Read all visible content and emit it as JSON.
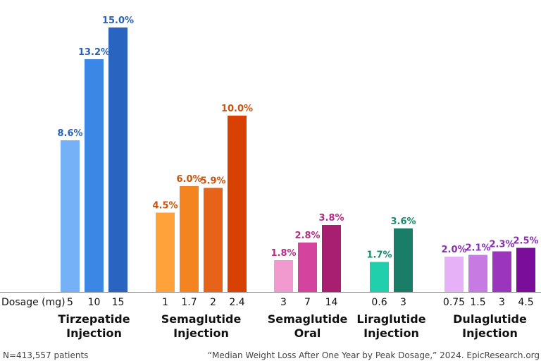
{
  "chart_data": {
    "type": "bar",
    "dosage_label": "Dosage (mg)",
    "ylim": [
      0,
      15
    ],
    "groups": [
      {
        "name_lines": [
          "Tirzepatide",
          "Injection"
        ],
        "label_color": "#2a62b8",
        "bars": [
          {
            "dose": "5",
            "value": 8.6,
            "label": "8.6%",
            "color": "#75b1f6"
          },
          {
            "dose": "10",
            "value": 13.2,
            "label": "13.2%",
            "color": "#3a87e6"
          },
          {
            "dose": "15",
            "value": 15.0,
            "label": "15.0%",
            "color": "#2864c0"
          }
        ]
      },
      {
        "name_lines": [
          "Semaglutide",
          "Injection"
        ],
        "label_color": "#c9530a",
        "bars": [
          {
            "dose": "1",
            "value": 4.5,
            "label": "4.5%",
            "color": "#ffa23a"
          },
          {
            "dose": "1.7",
            "value": 6.0,
            "label": "6.0%",
            "color": "#f4841f"
          },
          {
            "dose": "2",
            "value": 5.9,
            "label": "5.9%",
            "color": "#e8631a"
          },
          {
            "dose": "2.4",
            "value": 10.0,
            "label": "10.0%",
            "color": "#d84100"
          }
        ]
      },
      {
        "name_lines": [
          "Semaglutide",
          "Oral"
        ],
        "label_color": "#b32e86",
        "bars": [
          {
            "dose": "3",
            "value": 1.8,
            "label": "1.8%",
            "color": "#f09ad0"
          },
          {
            "dose": "7",
            "value": 2.8,
            "label": "2.8%",
            "color": "#d4439e"
          },
          {
            "dose": "14",
            "value": 3.8,
            "label": "3.8%",
            "color": "#a81f72"
          }
        ]
      },
      {
        "name_lines": [
          "Liraglutide",
          "Injection"
        ],
        "label_color": "#1a8a6e",
        "bars": [
          {
            "dose": "0.6",
            "value": 1.7,
            "label": "1.7%",
            "color": "#22cfad"
          },
          {
            "dose": "3",
            "value": 3.6,
            "label": "3.6%",
            "color": "#1a7d67"
          }
        ]
      },
      {
        "name_lines": [
          "Dulaglutide",
          "Injection"
        ],
        "label_color": "#8a2fb0",
        "bars": [
          {
            "dose": "0.75",
            "value": 2.0,
            "label": "2.0%",
            "color": "#e7b1f8"
          },
          {
            "dose": "1.5",
            "value": 2.1,
            "label": "2.1%",
            "color": "#c77ae2"
          },
          {
            "dose": "3",
            "value": 2.3,
            "label": "2.3%",
            "color": "#9b35bd"
          },
          {
            "dose": "4.5",
            "value": 2.5,
            "label": "2.5%",
            "color": "#7a0e9a"
          }
        ]
      }
    ]
  },
  "footer": {
    "left": "N=413,557 patients",
    "right": "“Median Weight Loss After One Year by Peak Dosage,” 2024. EpicResearch.org"
  }
}
